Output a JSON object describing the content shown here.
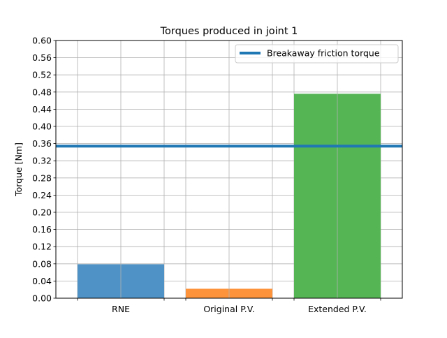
{
  "chart_data": {
    "type": "bar",
    "title": "Torques produced in joint 1",
    "xlabel": "",
    "ylabel": "Torque [Nm]",
    "categories": [
      "RNE",
      "Original P.V.",
      "Extended P.V."
    ],
    "values": [
      0.079,
      0.022,
      0.476
    ],
    "bar_colors": [
      "#4f93c6",
      "#fd943c",
      "#55b555"
    ],
    "ylim": [
      0,
      0.6
    ],
    "yticks": [
      "0.00",
      "0.04",
      "0.08",
      "0.12",
      "0.16",
      "0.20",
      "0.24",
      "0.28",
      "0.32",
      "0.36",
      "0.40",
      "0.44",
      "0.48",
      "0.52",
      "0.56",
      "0.60"
    ],
    "hline": {
      "name": "Breakaway friction torque",
      "value": 0.354,
      "color": "#1f77b4"
    },
    "grid": true,
    "legend": "top-right"
  }
}
